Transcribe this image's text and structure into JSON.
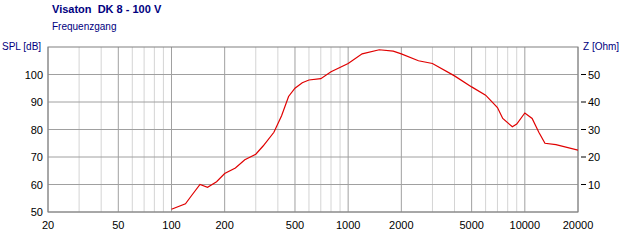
{
  "chart_data": {
    "type": "line",
    "title": "Visaton  DK 8 - 100 V",
    "subtitle": "Frequenzgang",
    "y_label": "SPL [dB]",
    "y2_label": "Z [Ohm]",
    "x": [
      100,
      120,
      130,
      145,
      160,
      180,
      200,
      230,
      260,
      300,
      330,
      380,
      420,
      460,
      500,
      550,
      600,
      700,
      800,
      1000,
      1200,
      1500,
      1800,
      2000,
      2500,
      3000,
      4000,
      5000,
      6000,
      7000,
      7500,
      8500,
      9000,
      10000,
      11000,
      12000,
      13000,
      15000,
      20000
    ],
    "values": [
      51,
      53,
      56,
      60,
      59,
      61,
      64,
      66,
      69,
      71,
      74,
      79,
      85,
      92,
      95,
      97,
      98,
      98.5,
      101,
      104,
      107.5,
      109,
      108.5,
      107.5,
      105,
      104,
      99.5,
      95.5,
      92.5,
      88,
      84,
      81,
      82,
      86,
      84,
      79,
      75,
      74.5,
      72.5
    ],
    "color": "#e00000",
    "xlim": [
      20,
      20000
    ],
    "xticks": [
      20,
      50,
      100,
      200,
      500,
      1000,
      2000,
      5000,
      10000,
      20000
    ],
    "ylim": [
      50,
      110
    ],
    "yticks": [
      50,
      60,
      70,
      80,
      90,
      100
    ],
    "y2lim": [
      0,
      60
    ],
    "y2ticks": [
      10,
      20,
      30,
      40,
      50
    ],
    "log": "x",
    "grid": true
  }
}
